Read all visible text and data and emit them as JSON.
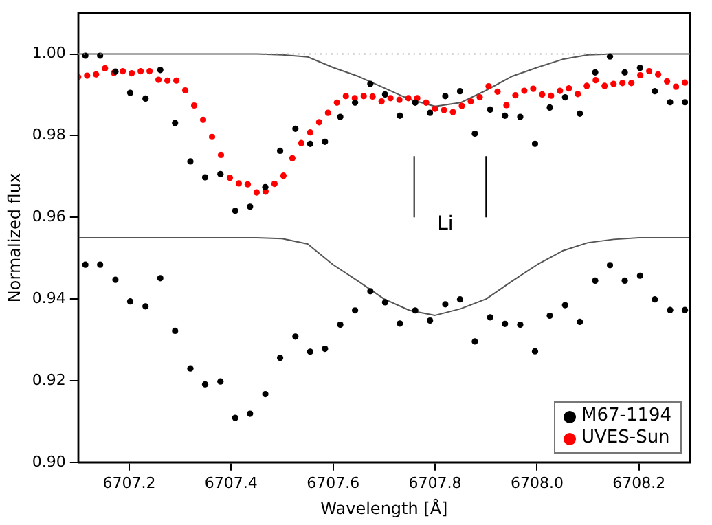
{
  "chart_data": {
    "type": "scatter",
    "xlabel": "Wavelength [Å]",
    "ylabel": "Normalized flux",
    "xlim": [
      6707.1,
      6708.3
    ],
    "xticks": [
      6707.2,
      6707.4,
      6707.6,
      6707.8,
      {
        "value": 6708,
        "label": "6708.0"
      },
      6708.2
    ],
    "ylim": [
      0.9,
      1.01
    ],
    "yticks": [
      {
        "value": 0.9,
        "label": "0.90"
      },
      {
        "value": 0.92,
        "label": "0.92"
      },
      {
        "value": 0.94,
        "label": "0.94"
      },
      {
        "value": 0.96,
        "label": "0.96"
      },
      {
        "value": 0.98,
        "label": "0.98"
      },
      {
        "value": 1.0,
        "label": "1.00"
      }
    ],
    "grid": false,
    "legend": "bottom right",
    "ref_lines": [
      {
        "axis": "y",
        "value": 1.0,
        "color": "#aaaaaa",
        "line_style": "dotted"
      }
    ],
    "annotations": [
      "Li"
    ],
    "series": [
      {
        "name": "M67-1194",
        "type": "scatter",
        "marker": "circle",
        "color": "#000000",
        "x": [
          6707.114,
          6707.143,
          6707.173,
          6707.202,
          6707.232,
          6707.261,
          6707.29,
          6707.32,
          6707.349,
          6707.379,
          6707.408,
          6707.437,
          6707.467,
          6707.496,
          6707.526,
          6707.555,
          6707.584,
          6707.614,
          6707.643,
          6707.673,
          6707.702,
          6707.731,
          6707.761,
          6707.79,
          6707.82,
          6707.849,
          6707.878,
          6707.908,
          6707.937,
          6707.967,
          6707.996,
          6708.025,
          6708.055,
          6708.084,
          6708.114,
          6708.143,
          6708.172,
          6708.202,
          6708.231,
          6708.261,
          6708.29
        ],
        "values": [
          0.9996,
          0.9996,
          0.9957,
          0.9905,
          0.9891,
          0.9961,
          0.9831,
          0.9737,
          0.9698,
          0.9706,
          0.9616,
          0.9626,
          0.9674,
          0.9763,
          0.9817,
          0.978,
          0.9785,
          0.9846,
          0.9881,
          0.9927,
          0.9901,
          0.9849,
          0.9881,
          0.9856,
          0.9897,
          0.9909,
          0.9805,
          0.9864,
          0.9849,
          0.9846,
          0.978,
          0.9869,
          0.9894,
          0.9854,
          0.9955,
          0.9994,
          0.9955,
          0.9966,
          0.9909,
          0.9882,
          0.9882
        ]
      },
      {
        "type": "scatter",
        "marker": "circle",
        "color": "#000000",
        "x": [
          6707.114,
          6707.143,
          6707.173,
          6707.202,
          6707.232,
          6707.261,
          6707.29,
          6707.32,
          6707.349,
          6707.379,
          6707.408,
          6707.437,
          6707.467,
          6707.496,
          6707.526,
          6707.555,
          6707.584,
          6707.614,
          6707.643,
          6707.673,
          6707.702,
          6707.731,
          6707.761,
          6707.79,
          6707.82,
          6707.849,
          6707.878,
          6707.908,
          6707.937,
          6707.967,
          6707.996,
          6708.025,
          6708.055,
          6708.084,
          6708.114,
          6708.143,
          6708.172,
          6708.202,
          6708.231,
          6708.261,
          6708.29
        ],
        "values": [
          0.9484,
          0.9484,
          0.9447,
          0.9394,
          0.9382,
          0.9451,
          0.9322,
          0.923,
          0.9191,
          0.9198,
          0.9109,
          0.9119,
          0.9167,
          0.9256,
          0.9308,
          0.9271,
          0.9278,
          0.9337,
          0.9372,
          0.9419,
          0.9392,
          0.934,
          0.9372,
          0.9347,
          0.9387,
          0.9399,
          0.9296,
          0.9355,
          0.9339,
          0.9337,
          0.9272,
          0.9359,
          0.9385,
          0.9344,
          0.9445,
          0.9483,
          0.9445,
          0.9457,
          0.9399,
          0.9373,
          0.9373
        ]
      },
      {
        "name": "UVES-Sun",
        "type": "scatter",
        "marker": "circle",
        "color": "#ff0000",
        "x": [
          6707.1,
          6707.1175,
          6707.135,
          6707.1525,
          6707.17,
          6707.1875,
          6707.205,
          6707.2225,
          6707.24,
          6707.2575,
          6707.275,
          6707.2925,
          6707.31,
          6707.3275,
          6707.345,
          6707.3625,
          6707.38,
          6707.3975,
          6707.415,
          6707.4325,
          6707.45,
          6707.4675,
          6707.485,
          6707.5025,
          6707.52,
          6707.5375,
          6707.555,
          6707.5725,
          6707.59,
          6707.6075,
          6707.625,
          6707.6425,
          6707.66,
          6707.6775,
          6707.695,
          6707.7125,
          6707.73,
          6707.7475,
          6707.765,
          6707.7825,
          6707.8,
          6707.8175,
          6707.835,
          6707.8525,
          6707.87,
          6707.8875,
          6707.905,
          6707.9225,
          6707.94,
          6707.9575,
          6707.975,
          6707.9925,
          6708.01,
          6708.0275,
          6708.045,
          6708.0625,
          6708.08,
          6708.0975,
          6708.115,
          6708.1325,
          6708.15,
          6708.1675,
          6708.185,
          6708.2025,
          6708.22,
          6708.2375,
          6708.255,
          6708.2725,
          6708.29
        ],
        "values": [
          0.9944,
          0.9947,
          0.995,
          0.9965,
          0.9954,
          0.9958,
          0.9953,
          0.9958,
          0.9958,
          0.9937,
          0.9935,
          0.9935,
          0.9911,
          0.9874,
          0.9839,
          0.9797,
          0.9753,
          0.9697,
          0.9683,
          0.9681,
          0.9661,
          0.9663,
          0.9682,
          0.9702,
          0.9745,
          0.9782,
          0.9808,
          0.9833,
          0.9856,
          0.9881,
          0.9897,
          0.9892,
          0.9897,
          0.9896,
          0.9884,
          0.9892,
          0.9888,
          0.9892,
          0.9892,
          0.9881,
          0.9866,
          0.9863,
          0.9858,
          0.9873,
          0.9884,
          0.9894,
          0.9921,
          0.9908,
          0.9875,
          0.9899,
          0.991,
          0.9915,
          0.9901,
          0.9898,
          0.991,
          0.9916,
          0.9902,
          0.9922,
          0.9936,
          0.9922,
          0.9927,
          0.9929,
          0.9929,
          0.9948,
          0.9958,
          0.995,
          0.9933,
          0.992,
          0.993
        ]
      },
      {
        "type": "line",
        "marker": "none",
        "color": "#555555",
        "x": [
          6707.1,
          6707.45,
          6707.5,
          6707.55,
          6707.6,
          6707.65,
          6707.7,
          6707.75,
          6707.8,
          6707.85,
          6707.9,
          6707.95,
          6708.0,
          6708.05,
          6708.1,
          6708.15,
          6708.3
        ],
        "values": [
          1.0,
          1.0,
          0.9998,
          0.9993,
          0.9967,
          0.9945,
          0.9917,
          0.9889,
          0.9872,
          0.9881,
          0.9911,
          0.9945,
          0.9967,
          0.9987,
          0.9998,
          1.0,
          1.0
        ]
      },
      {
        "type": "line",
        "marker": "none",
        "color": "#555555",
        "x": [
          6707.1,
          6707.45,
          6707.5,
          6707.55,
          6707.6,
          6707.65,
          6707.7,
          6707.75,
          6707.8,
          6707.85,
          6707.9,
          6707.95,
          6708.0,
          6708.05,
          6708.1,
          6708.15,
          6708.2,
          6708.3
        ],
        "values": [
          0.955,
          0.955,
          0.9548,
          0.9535,
          0.9484,
          0.9443,
          0.94,
          0.9372,
          0.936,
          0.9376,
          0.94,
          0.9443,
          0.9484,
          0.9518,
          0.9538,
          0.9546,
          0.955,
          0.955
        ]
      },
      {
        "type": "line",
        "marker": "none",
        "color": "#000000",
        "x": [
          6707.759,
          6707.759
        ],
        "values": [
          0.96,
          0.975
        ]
      },
      {
        "type": "line",
        "marker": "none",
        "color": "#000000",
        "x": [
          6707.9,
          6707.9
        ],
        "values": [
          0.96,
          0.975
        ]
      }
    ]
  }
}
